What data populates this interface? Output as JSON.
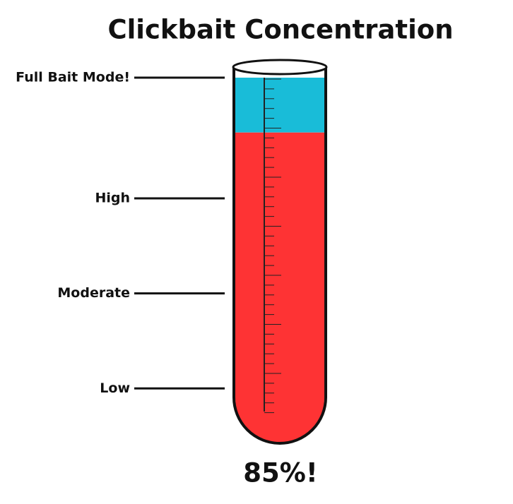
{
  "chart_data": {
    "type": "gauge",
    "title": "Clickbait Concentration",
    "value": 85,
    "value_label": "85%!",
    "ylim": [
      0,
      100
    ],
    "yticks": [
      {
        "value": 15,
        "label": "Low"
      },
      {
        "value": 41,
        "label": "Moderate"
      },
      {
        "value": 67,
        "label": "High"
      },
      {
        "value": 100,
        "label": "Full Bait Mode!"
      }
    ],
    "color": "#fe3334",
    "empty_color": "#19bcd8"
  }
}
